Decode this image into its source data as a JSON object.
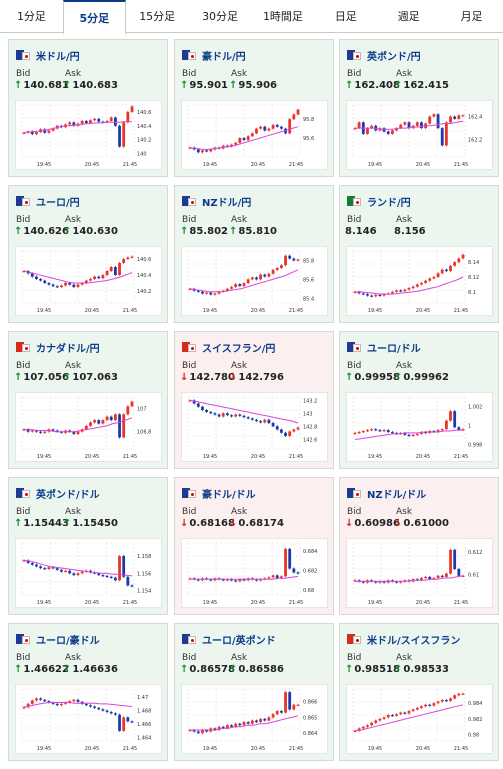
{
  "tabs": [
    "1分足",
    "5分足",
    "15分足",
    "30分足",
    "1時間足",
    "日足",
    "週足",
    "月足"
  ],
  "active_tab": 1,
  "labels": {
    "bid": "Bid",
    "ask": "Ask"
  },
  "x_ticks": [
    "19:45",
    "20:45",
    "21:45"
  ],
  "colors": {
    "up_candle": "#e8352a",
    "down_candle": "#1f3aa8",
    "ma_line": "#d946d9",
    "up_arrow": "#1a8a2e",
    "down_arrow": "#d0261f"
  },
  "cards": [
    {
      "pair": "米ドル/円",
      "flag": [
        "#1f3a93",
        "#ffffff"
      ],
      "bid": "140.681",
      "ask": "140.683",
      "bid_dir": "up",
      "ask_dir": "up",
      "trend": "up",
      "chart_data": {
        "type": "candlestick",
        "yticks": [
          "140.6",
          "140.4",
          "140.2",
          "140"
        ],
        "ylim": [
          139.95,
          140.7
        ],
        "series": [
          140.3,
          140.32,
          140.28,
          140.31,
          140.35,
          140.3,
          140.33,
          140.36,
          140.4,
          140.38,
          140.42,
          140.45,
          140.4,
          140.43,
          140.47,
          140.44,
          140.48,
          140.5,
          140.46,
          140.45,
          140.47,
          140.52,
          140.4,
          140.1,
          140.45,
          140.6,
          140.68
        ],
        "ma": [
          140.3,
          140.31,
          140.32,
          140.33,
          140.35,
          140.37,
          140.39,
          140.4,
          140.41,
          140.42,
          140.43,
          140.44,
          140.44,
          140.45,
          140.45,
          140.45,
          140.46,
          140.46
        ]
      }
    },
    {
      "pair": "豪ドル/円",
      "flag": [
        "#1f3a93",
        "#ffffff"
      ],
      "bid": "95.901",
      "ask": "95.906",
      "bid_dir": "up",
      "ask_dir": "up",
      "trend": "up",
      "chart_data": {
        "type": "candlestick",
        "yticks": [
          "95.8",
          "95.6"
        ],
        "ylim": [
          95.4,
          95.95
        ],
        "series": [
          95.5,
          95.48,
          95.45,
          95.47,
          95.46,
          95.48,
          95.5,
          95.49,
          95.52,
          95.51,
          95.53,
          95.55,
          95.6,
          95.58,
          95.62,
          95.65,
          95.7,
          95.72,
          95.68,
          95.7,
          95.74,
          95.72,
          95.7,
          95.65,
          95.8,
          95.85,
          95.9
        ],
        "ma": [
          95.5,
          95.49,
          95.48,
          95.48,
          95.49,
          95.5,
          95.51,
          95.52,
          95.54,
          95.56,
          95.58,
          95.6,
          95.62,
          95.64,
          95.66,
          95.68,
          95.7,
          95.72
        ]
      }
    },
    {
      "pair": "英ポンド/円",
      "flag": [
        "#1f3a93",
        "#ffffff"
      ],
      "bid": "162.408",
      "ask": "162.415",
      "bid_dir": "up",
      "ask_dir": "up",
      "trend": "up",
      "chart_data": {
        "type": "candlestick",
        "yticks": [
          "162.4",
          "162.2"
        ],
        "ylim": [
          162.05,
          162.5
        ],
        "series": [
          162.3,
          162.35,
          162.25,
          162.3,
          162.32,
          162.28,
          162.3,
          162.27,
          162.25,
          162.28,
          162.3,
          162.33,
          162.35,
          162.3,
          162.32,
          162.35,
          162.3,
          162.34,
          162.4,
          162.42,
          162.3,
          162.15,
          162.35,
          162.4,
          162.38,
          162.41,
          162.41
        ],
        "ma": [
          162.3,
          162.3,
          162.3,
          162.3,
          162.29,
          162.29,
          162.29,
          162.3,
          162.3,
          162.31,
          162.31,
          162.32,
          162.32,
          162.33,
          162.34,
          162.34,
          162.35,
          162.36
        ]
      }
    },
    {
      "pair": "ユーロ/円",
      "flag": [
        "#1f3a93",
        "#ffffff"
      ],
      "bid": "140.626",
      "ask": "140.630",
      "bid_dir": "up",
      "ask_dir": "up",
      "trend": "up",
      "chart_data": {
        "type": "candlestick",
        "yticks": [
          "140.6",
          "140.4",
          "140.2"
        ],
        "ylim": [
          140.05,
          140.7
        ],
        "series": [
          140.45,
          140.42,
          140.38,
          140.35,
          140.33,
          140.3,
          140.28,
          140.26,
          140.25,
          140.27,
          140.3,
          140.28,
          140.25,
          140.28,
          140.3,
          140.33,
          140.35,
          140.38,
          140.36,
          140.4,
          140.45,
          140.5,
          140.4,
          140.55,
          140.6,
          140.62,
          140.63
        ],
        "ma": [
          140.45,
          140.43,
          140.41,
          140.39,
          140.37,
          140.35,
          140.33,
          140.31,
          140.3,
          140.3,
          140.3,
          140.31,
          140.32,
          140.33,
          140.35,
          140.37,
          140.4,
          140.43
        ]
      }
    },
    {
      "pair": "NZドル/円",
      "flag": [
        "#1f3a93",
        "#ffffff"
      ],
      "bid": "85.802",
      "ask": "85.810",
      "bid_dir": "up",
      "ask_dir": "up",
      "trend": "up",
      "chart_data": {
        "type": "candlestick",
        "yticks": [
          "85.8",
          "85.6",
          "85.4"
        ],
        "ylim": [
          85.35,
          85.9
        ],
        "series": [
          85.5,
          85.48,
          85.47,
          85.45,
          85.46,
          85.44,
          85.45,
          85.47,
          85.48,
          85.5,
          85.52,
          85.55,
          85.53,
          85.56,
          85.6,
          85.62,
          85.6,
          85.65,
          85.63,
          85.66,
          85.7,
          85.72,
          85.75,
          85.85,
          85.82,
          85.8,
          85.81
        ],
        "ma": [
          85.5,
          85.49,
          85.48,
          85.47,
          85.47,
          85.47,
          85.48,
          85.49,
          85.5,
          85.52,
          85.54,
          85.56,
          85.58,
          85.6,
          85.62,
          85.64,
          85.67,
          85.7
        ]
      }
    },
    {
      "pair": "ランド/円",
      "flag": [
        "#1a7a3a",
        "#ffffff"
      ],
      "bid": "8.146",
      "ask": "8.156",
      "bid_dir": "none",
      "ask_dir": "none",
      "trend": "up",
      "chart_data": {
        "type": "candlestick",
        "yticks": [
          "8.14",
          "8.12",
          "8.1"
        ],
        "ylim": [
          8.085,
          8.155
        ],
        "series": [
          8.1,
          8.098,
          8.097,
          8.095,
          8.094,
          8.096,
          8.095,
          8.097,
          8.098,
          8.1,
          8.102,
          8.101,
          8.103,
          8.105,
          8.107,
          8.11,
          8.112,
          8.115,
          8.118,
          8.12,
          8.125,
          8.13,
          8.128,
          8.135,
          8.14,
          8.145,
          8.15
        ],
        "ma": [
          8.1,
          8.1,
          8.099,
          8.098,
          8.097,
          8.097,
          8.097,
          8.098,
          8.099,
          8.1,
          8.101,
          8.103,
          8.105,
          8.107,
          8.11,
          8.113,
          8.116,
          8.12
        ]
      }
    },
    {
      "pair": "カナダドル/円",
      "flag": [
        "#d52b1e",
        "#ffffff"
      ],
      "bid": "107.056",
      "ask": "107.063",
      "bid_dir": "up",
      "ask_dir": "up",
      "trend": "up",
      "chart_data": {
        "type": "candlestick",
        "yticks": [
          "107",
          "106.8"
        ],
        "ylim": [
          106.65,
          107.1
        ],
        "series": [
          106.82,
          106.8,
          106.81,
          106.8,
          106.79,
          106.8,
          106.82,
          106.81,
          106.8,
          106.79,
          106.81,
          106.8,
          106.78,
          106.8,
          106.82,
          106.85,
          106.88,
          106.9,
          106.87,
          106.9,
          106.93,
          106.9,
          106.95,
          106.75,
          106.95,
          107.02,
          107.06
        ],
        "ma": [
          106.82,
          106.82,
          106.81,
          106.81,
          106.81,
          106.8,
          106.8,
          106.8,
          106.8,
          106.81,
          106.82,
          106.83,
          106.84,
          106.85,
          106.87,
          106.88,
          106.9,
          106.92
        ]
      }
    },
    {
      "pair": "スイスフラン/円",
      "flag": [
        "#d52b1e",
        "#ffffff"
      ],
      "bid": "142.780",
      "ask": "142.796",
      "bid_dir": "down",
      "ask_dir": "down",
      "trend": "down",
      "chart_data": {
        "type": "candlestick",
        "yticks": [
          "143.2",
          "143",
          "142.8",
          "142.6"
        ],
        "ylim": [
          142.45,
          143.25
        ],
        "series": [
          143.2,
          143.15,
          143.1,
          143.05,
          143.02,
          143.0,
          142.98,
          142.95,
          143.0,
          142.97,
          142.95,
          142.98,
          142.96,
          142.94,
          142.92,
          142.9,
          142.88,
          142.86,
          142.9,
          142.85,
          142.8,
          142.75,
          142.7,
          142.65,
          142.72,
          142.75,
          142.78
        ],
        "ma": [
          143.2,
          143.18,
          143.16,
          143.14,
          143.12,
          143.1,
          143.08,
          143.06,
          143.04,
          143.02,
          143.0,
          142.98,
          142.96,
          142.94,
          142.92,
          142.9,
          142.88,
          142.85
        ]
      }
    },
    {
      "pair": "ユーロ/ドル",
      "flag": [
        "#1f3a93",
        "#ffffff"
      ],
      "bid": "0.99958",
      "ask": "0.99962",
      "bid_dir": "up",
      "ask_dir": "up",
      "trend": "up",
      "chart_data": {
        "type": "candlestick",
        "yticks": [
          "1.002",
          "1",
          "0.998"
        ],
        "ylim": [
          0.9975,
          1.003
        ],
        "series": [
          0.9992,
          0.9993,
          0.9994,
          0.9995,
          0.9996,
          0.9995,
          0.9994,
          0.9995,
          0.9993,
          0.9992,
          0.9991,
          0.9992,
          0.999,
          0.9989,
          0.999,
          0.9991,
          0.9993,
          0.9992,
          0.9994,
          0.9993,
          0.9995,
          0.9996,
          1.0005,
          1.0015,
          0.9998,
          0.9995,
          0.9996
        ],
        "ma": [
          0.9985,
          0.9986,
          0.9987,
          0.9988,
          0.9989,
          0.999,
          0.9991,
          0.9991,
          0.9992,
          0.9992,
          0.9992,
          0.9993,
          0.9993,
          0.9993,
          0.9994,
          0.9994,
          0.9995,
          0.9995
        ]
      }
    },
    {
      "pair": "英ポンド/ドル",
      "flag": [
        "#1f3a93",
        "#ffffff"
      ],
      "bid": "1.15443",
      "ask": "1.15450",
      "bid_dir": "up",
      "ask_dir": "up",
      "trend": "up",
      "chart_data": {
        "type": "candlestick",
        "yticks": [
          "1.158",
          "1.156",
          "1.154"
        ],
        "ylim": [
          1.1535,
          1.1595
        ],
        "series": [
          1.1575,
          1.1572,
          1.157,
          1.1568,
          1.1566,
          1.1565,
          1.1567,
          1.1566,
          1.1564,
          1.1562,
          1.1563,
          1.156,
          1.1558,
          1.156,
          1.1562,
          1.1563,
          1.1561,
          1.156,
          1.1558,
          1.1557,
          1.1556,
          1.1555,
          1.1552,
          1.158,
          1.1556,
          1.1546,
          1.1545
        ],
        "ma": [
          1.1575,
          1.1574,
          1.1572,
          1.157,
          1.1568,
          1.1567,
          1.1566,
          1.1565,
          1.1564,
          1.1563,
          1.1562,
          1.1561,
          1.156,
          1.156,
          1.1559,
          1.1559,
          1.1558,
          1.1557
        ]
      }
    },
    {
      "pair": "豪ドル/ドル",
      "flag": [
        "#1f3a93",
        "#ffffff"
      ],
      "bid": "0.68168",
      "ask": "0.68174",
      "bid_dir": "down",
      "ask_dir": "down",
      "trend": "down",
      "chart_data": {
        "type": "candlestick",
        "yticks": [
          "0.684",
          "0.682",
          "0.68"
        ],
        "ylim": [
          0.6795,
          0.6848
        ],
        "series": [
          0.6812,
          0.6811,
          0.681,
          0.6812,
          0.6811,
          0.681,
          0.6812,
          0.6811,
          0.681,
          0.6811,
          0.681,
          0.6809,
          0.6811,
          0.681,
          0.6812,
          0.6811,
          0.681,
          0.6811,
          0.6812,
          0.6813,
          0.6815,
          0.6812,
          0.6814,
          0.6842,
          0.6822,
          0.6818,
          0.6817
        ],
        "ma": [
          0.6811,
          0.6811,
          0.6811,
          0.6811,
          0.6811,
          0.6811,
          0.6811,
          0.6811,
          0.6811,
          0.6811,
          0.6811,
          0.6811,
          0.6811,
          0.6811,
          0.6812,
          0.6812,
          0.6813,
          0.6814
        ]
      }
    },
    {
      "pair": "NZドル/ドル",
      "flag": [
        "#1f3a93",
        "#ffffff"
      ],
      "bid": "0.60986",
      "ask": "0.61000",
      "bid_dir": "down",
      "ask_dir": "down",
      "trend": "down",
      "chart_data": {
        "type": "candlestick",
        "yticks": [
          "0.612",
          "0.61"
        ],
        "ylim": [
          0.6082,
          0.6128
        ],
        "series": [
          0.6095,
          0.6094,
          0.6093,
          0.6095,
          0.6094,
          0.6093,
          0.6094,
          0.6093,
          0.6095,
          0.6094,
          0.6093,
          0.6094,
          0.6095,
          0.6094,
          0.6096,
          0.6095,
          0.6097,
          0.6098,
          0.6096,
          0.6097,
          0.6099,
          0.6098,
          0.6101,
          0.6122,
          0.6105,
          0.6099,
          0.6099
        ],
        "ma": [
          0.6094,
          0.6094,
          0.6094,
          0.6094,
          0.6094,
          0.6094,
          0.6094,
          0.6094,
          0.6094,
          0.6095,
          0.6095,
          0.6095,
          0.6096,
          0.6096,
          0.6097,
          0.6097,
          0.6098,
          0.6099
        ]
      }
    },
    {
      "pair": "ユーロ/豪ドル",
      "flag": [
        "#1f3a93",
        "#ffffff"
      ],
      "bid": "1.46622",
      "ask": "1.46636",
      "bid_dir": "up",
      "ask_dir": "up",
      "trend": "up",
      "chart_data": {
        "type": "candlestick",
        "yticks": [
          "1.47",
          "1.468",
          "1.466",
          "1.464"
        ],
        "ylim": [
          1.4635,
          1.4712
        ],
        "series": [
          1.4685,
          1.469,
          1.4695,
          1.4698,
          1.4696,
          1.4694,
          1.4692,
          1.469,
          1.4688,
          1.469,
          1.4692,
          1.4694,
          1.4696,
          1.4693,
          1.469,
          1.4688,
          1.4686,
          1.4684,
          1.4682,
          1.468,
          1.4678,
          1.4676,
          1.4674,
          1.465,
          1.467,
          1.4664,
          1.4663
        ],
        "ma": [
          1.4685,
          1.4687,
          1.4689,
          1.4691,
          1.4692,
          1.4692,
          1.4692,
          1.4692,
          1.4691,
          1.4691,
          1.4691,
          1.4691,
          1.469,
          1.469,
          1.4689,
          1.4688,
          1.4687,
          1.4686
        ]
      }
    },
    {
      "pair": "ユーロ/英ポンド",
      "flag": [
        "#1f3a93",
        "#ffffff"
      ],
      "bid": "0.86578",
      "ask": "0.86586",
      "bid_dir": "up",
      "ask_dir": "up",
      "trend": "up",
      "chart_data": {
        "type": "candlestick",
        "yticks": [
          "0.866",
          "0.865",
          "0.864"
        ],
        "ylim": [
          0.8635,
          0.8668
        ],
        "series": [
          0.8642,
          0.8641,
          0.864,
          0.8642,
          0.8641,
          0.8643,
          0.8642,
          0.8644,
          0.8643,
          0.8645,
          0.8644,
          0.8646,
          0.8645,
          0.8647,
          0.8646,
          0.8648,
          0.8647,
          0.8649,
          0.8648,
          0.865,
          0.8652,
          0.8654,
          0.8653,
          0.8666,
          0.8655,
          0.8658,
          0.8658
        ],
        "ma": [
          0.8642,
          0.8642,
          0.8642,
          0.8642,
          0.8642,
          0.8643,
          0.8643,
          0.8644,
          0.8644,
          0.8645,
          0.8645,
          0.8646,
          0.8646,
          0.8647,
          0.8648,
          0.8649,
          0.865,
          0.8651
        ]
      }
    },
    {
      "pair": "米ドル/スイスフラン",
      "flag": [
        "#d52b1e",
        "#ffffff"
      ],
      "bid": "0.98518",
      "ask": "0.98533",
      "bid_dir": "up",
      "ask_dir": "up",
      "trend": "up",
      "chart_data": {
        "type": "candlestick",
        "yticks": [
          "0.984",
          "0.982",
          "0.98"
        ],
        "ylim": [
          0.9792,
          0.9858
        ],
        "series": [
          0.9805,
          0.9808,
          0.981,
          0.9812,
          0.9815,
          0.9818,
          0.982,
          0.9822,
          0.9825,
          0.9824,
          0.9826,
          0.9828,
          0.9827,
          0.983,
          0.9832,
          0.9834,
          0.9836,
          0.9838,
          0.9837,
          0.984,
          0.9842,
          0.9844,
          0.9843,
          0.9846,
          0.985,
          0.9852,
          0.9852
        ],
        "ma": [
          0.9805,
          0.9806,
          0.9808,
          0.981,
          0.9812,
          0.9814,
          0.9816,
          0.9818,
          0.982,
          0.9822,
          0.9824,
          0.9826,
          0.9828,
          0.983,
          0.9832,
          0.9834,
          0.9836,
          0.9838
        ]
      }
    }
  ]
}
